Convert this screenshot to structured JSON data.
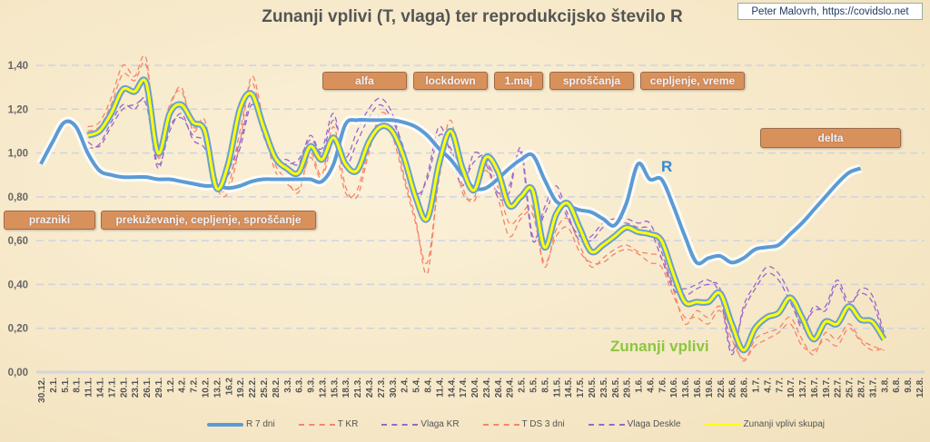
{
  "chart_data": {
    "type": "line",
    "title": "Zunanji vplivi (T, vlaga) ter reprodukcijsko število R",
    "credit": "Peter Malovrh, https://covidslo.net",
    "ylim": [
      0,
      1.4
    ],
    "yticks": [
      "0,00",
      "0,20",
      "0,40",
      "0,60",
      "0,80",
      "1,00",
      "1,20",
      "1,40"
    ],
    "grid": true,
    "legend_position": "bottom",
    "categories": [
      "30.12.",
      "2.1.",
      "5.1.",
      "8.1.",
      "11.1.",
      "14.1.",
      "17.1.",
      "20.1.",
      "23.1.",
      "26.1.",
      "29.1.",
      "1.2.",
      "4.2.",
      "7.2.",
      "10.2.",
      "13.2.",
      "16.2",
      "19.2.",
      "22.2.",
      "25.2.",
      "28.2.",
      "3.3.",
      "6.3.",
      "9.3.",
      "12.3.",
      "15.3.",
      "18.3.",
      "21.3.",
      "24.3.",
      "27.3.",
      "30.3.",
      "2.4.",
      "5.4.",
      "8.4.",
      "11.4.",
      "14.4.",
      "17.4.",
      "20.4.",
      "23.4.",
      "26.4.",
      "29.4.",
      "2.5.",
      "5.5.",
      "8.5.",
      "11.5.",
      "14.5.",
      "17.5.",
      "20.5.",
      "23.5.",
      "26.5.",
      "29.5.",
      "1.6.",
      "4.6.",
      "7.6.",
      "10.6.",
      "13.6.",
      "16.6.",
      "19.6.",
      "22.6.",
      "25.6.",
      "28.6.",
      "1.7.",
      "4.7.",
      "7.7.",
      "10.7.",
      "13.7.",
      "16.7.",
      "19.7.",
      "22.7.",
      "25.7.",
      "28.7.",
      "31.7.",
      "3.8.",
      "6.8.",
      "9.8.",
      "12.8."
    ],
    "series": [
      {
        "name": "R 7 dni",
        "color": "#5b9bd5",
        "style": "solid",
        "values": [
          0.95,
          1.05,
          1.14,
          1.12,
          1.0,
          0.92,
          0.9,
          0.89,
          0.89,
          0.89,
          0.88,
          0.88,
          0.87,
          0.86,
          0.85,
          0.85,
          0.84,
          0.85,
          0.87,
          0.88,
          0.88,
          0.88,
          0.88,
          0.88,
          0.87,
          0.95,
          1.13,
          1.15,
          1.15,
          1.15,
          1.15,
          1.14,
          1.12,
          1.08,
          1.02,
          0.97,
          0.9,
          0.84,
          0.84,
          0.88,
          0.93,
          0.97,
          0.99,
          0.88,
          0.78,
          0.76,
          0.74,
          0.73,
          0.7,
          0.67,
          0.77,
          0.95,
          0.88,
          0.88,
          0.76,
          0.62,
          0.5,
          0.52,
          0.53,
          0.5,
          0.52,
          0.56,
          0.57,
          0.58,
          0.63,
          0.68,
          0.74,
          0.8,
          0.86,
          0.91,
          0.93,
          null,
          null,
          null,
          null,
          null
        ]
      },
      {
        "name": "T KR",
        "color": "#f4856a",
        "style": "dashed",
        "values": [
          null,
          null,
          null,
          null,
          1.12,
          1.14,
          1.25,
          1.4,
          1.35,
          1.43,
          0.98,
          1.2,
          1.3,
          1.1,
          1.15,
          0.85,
          0.82,
          1.05,
          1.35,
          1.15,
          0.95,
          0.88,
          0.82,
          1.0,
          0.9,
          1.12,
          0.85,
          0.8,
          1.0,
          1.18,
          1.12,
          0.9,
          0.7,
          0.45,
          0.9,
          1.15,
          0.85,
          0.78,
          0.95,
          0.85,
          0.68,
          0.72,
          0.75,
          0.48,
          0.65,
          0.7,
          0.58,
          0.48,
          0.52,
          0.56,
          0.58,
          0.55,
          0.54,
          0.52,
          0.38,
          0.22,
          0.28,
          0.25,
          0.3,
          0.18,
          0.05,
          0.15,
          0.18,
          0.2,
          0.25,
          0.15,
          0.08,
          0.18,
          0.15,
          0.22,
          0.15,
          0.12,
          0.1,
          null,
          null,
          null
        ]
      },
      {
        "name": "Vlaga KR",
        "color": "#9966cc",
        "style": "dashed",
        "values": [
          null,
          null,
          null,
          null,
          1.05,
          1.03,
          1.12,
          1.2,
          1.22,
          1.22,
          0.93,
          1.12,
          1.16,
          1.08,
          1.05,
          0.88,
          0.9,
          1.02,
          1.22,
          1.1,
          0.98,
          0.97,
          0.95,
          1.08,
          1.0,
          1.15,
          0.98,
          1.1,
          1.2,
          1.25,
          1.18,
          1.0,
          0.78,
          0.9,
          1.12,
          1.0,
          0.85,
          1.0,
          0.95,
          0.82,
          0.85,
          1.0,
          0.6,
          0.75,
          0.85,
          0.72,
          0.6,
          0.62,
          0.68,
          0.7,
          0.7,
          0.68,
          0.68,
          0.55,
          0.4,
          0.38,
          0.4,
          0.42,
          0.35,
          0.08,
          0.3,
          0.4,
          0.48,
          0.45,
          0.35,
          0.2,
          0.3,
          0.28,
          0.4,
          0.3,
          0.38,
          0.35,
          0.18,
          null,
          null,
          null
        ]
      },
      {
        "name": "T DS 3 dni",
        "color": "#f4856a",
        "style": "dashed",
        "values": [
          null,
          null,
          null,
          null,
          1.1,
          1.12,
          1.22,
          1.36,
          1.33,
          1.4,
          1.0,
          1.22,
          1.28,
          1.12,
          1.12,
          0.86,
          0.85,
          1.1,
          1.32,
          1.12,
          0.92,
          0.86,
          0.84,
          0.98,
          0.88,
          1.05,
          0.82,
          0.83,
          1.02,
          1.15,
          1.08,
          0.88,
          0.68,
          0.5,
          0.88,
          1.08,
          0.82,
          0.8,
          0.92,
          0.8,
          0.62,
          0.7,
          0.72,
          0.5,
          0.62,
          0.66,
          0.55,
          0.5,
          0.5,
          0.54,
          0.56,
          0.54,
          0.5,
          0.48,
          0.35,
          0.25,
          0.25,
          0.22,
          0.28,
          0.15,
          0.06,
          0.12,
          0.15,
          0.18,
          0.22,
          0.12,
          0.1,
          0.15,
          0.12,
          0.2,
          0.14,
          0.1,
          0.11,
          null,
          null,
          null
        ]
      },
      {
        "name": "Vlaga Deskle",
        "color": "#9966cc",
        "style": "dashed",
        "values": [
          null,
          null,
          null,
          null,
          1.02,
          1.04,
          1.14,
          1.22,
          1.2,
          1.24,
          0.95,
          1.1,
          1.18,
          1.06,
          1.02,
          0.86,
          0.92,
          1.05,
          1.24,
          1.08,
          0.96,
          0.95,
          0.97,
          1.06,
          1.02,
          1.18,
          0.95,
          1.05,
          1.16,
          1.22,
          1.15,
          1.02,
          0.82,
          0.88,
          1.08,
          1.02,
          0.88,
          0.96,
          0.98,
          0.8,
          0.82,
          1.02,
          0.62,
          0.72,
          0.82,
          0.7,
          0.62,
          0.6,
          0.66,
          0.68,
          0.68,
          0.66,
          0.65,
          0.52,
          0.38,
          0.35,
          0.38,
          0.4,
          0.38,
          0.1,
          0.28,
          0.38,
          0.45,
          0.42,
          0.32,
          0.22,
          0.28,
          0.3,
          0.42,
          0.32,
          0.36,
          0.32,
          0.16,
          null,
          null,
          null
        ]
      },
      {
        "name": "Zunanji vplivi skupaj",
        "color": "#ffff00",
        "style": "solid",
        "values": [
          null,
          null,
          null,
          null,
          1.08,
          1.1,
          1.18,
          1.29,
          1.28,
          1.32,
          1.0,
          1.18,
          1.22,
          1.14,
          1.1,
          0.84,
          0.95,
          1.2,
          1.27,
          1.12,
          0.98,
          0.93,
          0.91,
          1.03,
          0.97,
          1.07,
          0.95,
          0.92,
          1.05,
          1.12,
          1.1,
          0.98,
          0.8,
          0.7,
          0.95,
          1.1,
          0.93,
          0.83,
          0.98,
          0.92,
          0.76,
          0.8,
          0.83,
          0.57,
          0.72,
          0.77,
          0.66,
          0.55,
          0.58,
          0.62,
          0.66,
          0.64,
          0.63,
          0.6,
          0.45,
          0.32,
          0.32,
          0.32,
          0.36,
          0.22,
          0.1,
          0.2,
          0.25,
          0.27,
          0.34,
          0.25,
          0.15,
          0.23,
          0.22,
          0.3,
          0.24,
          0.23,
          0.15,
          null,
          null,
          null
        ]
      }
    ],
    "annotations": {
      "alfa": "alfa",
      "lockdown": "lockdown",
      "maj": "1.maj",
      "sproscanja": "sproščanja",
      "cepljenje_vreme": "cepljenje, vreme",
      "delta": "delta",
      "prazniki": "prazniki",
      "prekuzevanje": "prekuževanje, cepljenje, sproščanje",
      "r_label": "R",
      "zunanji_label": "Zunanji vplivi"
    },
    "colors": {
      "annotation_box": "#d9915c",
      "r_label": "#3a86d0",
      "zunanji_label": "#8cc63f"
    }
  }
}
